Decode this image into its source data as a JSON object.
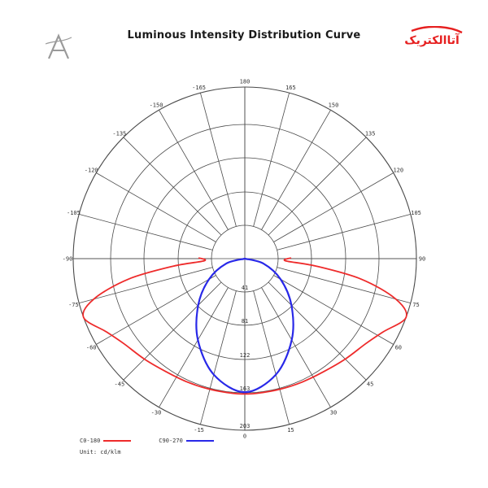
{
  "chart_data": {
    "type": "polar-line",
    "title": "Luminous Intensity Distribution Curve",
    "angle_labels": [
      "180",
      "165",
      "150",
      "135",
      "120",
      "105",
      "90",
      "75",
      "60",
      "45",
      "30",
      "15",
      "0",
      "-15",
      "-30",
      "-45",
      "-60",
      "-75",
      "-90",
      "-105",
      "-120",
      "-135",
      "-150",
      "-165"
    ],
    "radial_labels": [
      "41",
      "81",
      "122",
      "163"
    ],
    "radial_max": 203,
    "series": [
      {
        "name": "C0-180",
        "color": "#ee2b2b",
        "points": [
          {
            "angle": -90,
            "value": 0
          },
          {
            "angle": -87,
            "value": 48
          },
          {
            "angle": -84,
            "value": 85
          },
          {
            "angle": -80,
            "value": 140
          },
          {
            "angle": -75,
            "value": 185
          },
          {
            "angle": -70,
            "value": 203
          },
          {
            "angle": -62,
            "value": 185
          },
          {
            "angle": -55,
            "value": 175
          },
          {
            "angle": -45,
            "value": 168
          },
          {
            "angle": -35,
            "value": 163
          },
          {
            "angle": -25,
            "value": 161
          },
          {
            "angle": -15,
            "value": 160
          },
          {
            "angle": -5,
            "value": 160
          },
          {
            "angle": 0,
            "value": 160
          },
          {
            "angle": 5,
            "value": 160
          },
          {
            "angle": 15,
            "value": 160
          },
          {
            "angle": 25,
            "value": 161
          },
          {
            "angle": 35,
            "value": 163
          },
          {
            "angle": 45,
            "value": 168
          },
          {
            "angle": 55,
            "value": 175
          },
          {
            "angle": 62,
            "value": 185
          },
          {
            "angle": 70,
            "value": 203
          },
          {
            "angle": 75,
            "value": 185
          },
          {
            "angle": 80,
            "value": 140
          },
          {
            "angle": 84,
            "value": 85
          },
          {
            "angle": 87,
            "value": 48
          },
          {
            "angle": 90,
            "value": 0
          }
        ]
      },
      {
        "name": "C90-270",
        "color": "#2828e8",
        "points": [
          {
            "angle": -90,
            "value": 0
          },
          {
            "angle": -75,
            "value": 23
          },
          {
            "angle": -60,
            "value": 49
          },
          {
            "angle": -45,
            "value": 78
          },
          {
            "angle": -30,
            "value": 111
          },
          {
            "angle": -15,
            "value": 142
          },
          {
            "angle": 0,
            "value": 158
          },
          {
            "angle": 15,
            "value": 142
          },
          {
            "angle": 30,
            "value": 111
          },
          {
            "angle": 45,
            "value": 78
          },
          {
            "angle": 60,
            "value": 49
          },
          {
            "angle": 75,
            "value": 23
          },
          {
            "angle": 90,
            "value": 0
          }
        ]
      }
    ],
    "unit": "Unit: cd/klm",
    "grid": true,
    "legend_position": "bottom-left"
  },
  "logos": {
    "left_mark": "A",
    "right_text": "آتاالکتریک"
  },
  "colors": {
    "grid": "#4a4a4a",
    "logo_red": "#e62020",
    "logo_gray": "#9a9a9a"
  }
}
